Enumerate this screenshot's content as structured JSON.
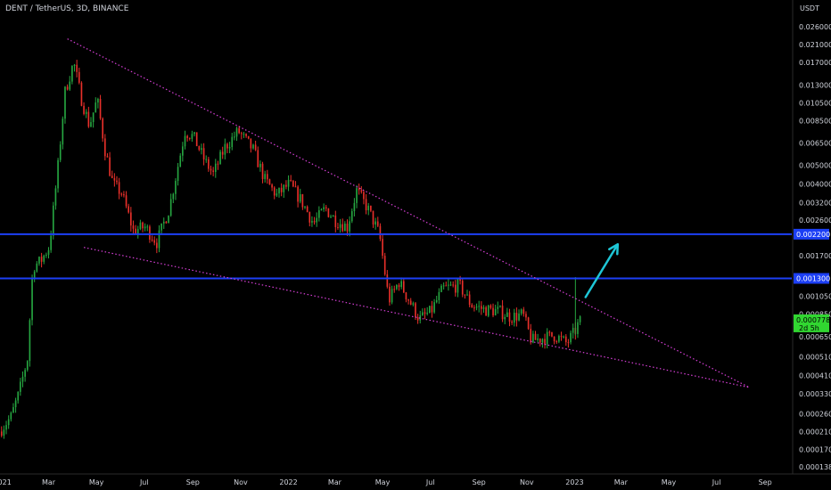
{
  "header": {
    "title": "DENT / TetherUS, 3D, BINANCE",
    "currency": "USDT"
  },
  "colors": {
    "background": "#000000",
    "up": "#26a641",
    "down": "#e8302a",
    "level_line": "#1c3ff5",
    "trendline": "#d63fd6",
    "arrow": "#1ec6d6",
    "axis_text": "#d1d4dc",
    "price_badge": "#31d631"
  },
  "chart_data": {
    "type": "candlestick",
    "title": "DENT / TetherUS, 3D, BINANCE",
    "y_scale": "log",
    "ylim": [
      0.000138,
      0.028
    ],
    "xlim": [
      "2020-12-29",
      "2023-10-05"
    ],
    "y_ticks": [
      "0.026000",
      "0.021000",
      "0.017000",
      "0.013000",
      "0.010500",
      "0.008500",
      "0.006500",
      "0.005000",
      "0.004000",
      "0.003200",
      "0.002600",
      "0.002200",
      "0.001700",
      "0.001300",
      "0.001050",
      "0.000850",
      "0.000778",
      "0.000650",
      "0.000510",
      "0.000410",
      "0.000330",
      "0.000260",
      "0.000210",
      "0.000170",
      "0.000138"
    ],
    "x_ticks": [
      {
        "label": "2021",
        "date": "2021-01-01"
      },
      {
        "label": "Mar",
        "date": "2021-03-01"
      },
      {
        "label": "May",
        "date": "2021-05-01"
      },
      {
        "label": "Jul",
        "date": "2021-07-01"
      },
      {
        "label": "Sep",
        "date": "2021-09-01"
      },
      {
        "label": "Nov",
        "date": "2021-11-01"
      },
      {
        "label": "2022",
        "date": "2022-01-01"
      },
      {
        "label": "Mar",
        "date": "2022-03-01"
      },
      {
        "label": "May",
        "date": "2022-05-01"
      },
      {
        "label": "Jul",
        "date": "2022-07-01"
      },
      {
        "label": "Sep",
        "date": "2022-09-01"
      },
      {
        "label": "Nov",
        "date": "2022-11-01"
      },
      {
        "label": "2023",
        "date": "2023-01-01"
      },
      {
        "label": "Mar",
        "date": "2023-03-01"
      },
      {
        "label": "May",
        "date": "2023-05-01"
      },
      {
        "label": "Jul",
        "date": "2023-07-01"
      },
      {
        "label": "Sep",
        "date": "2023-09-01"
      }
    ],
    "price_anchors": [
      {
        "date": "2020-12-31",
        "price": 0.00021
      },
      {
        "date": "2021-01-15",
        "price": 0.00025
      },
      {
        "date": "2021-01-25",
        "price": 0.00033
      },
      {
        "date": "2021-02-05",
        "price": 0.0005
      },
      {
        "date": "2021-02-12",
        "price": 0.0015
      },
      {
        "date": "2021-02-22",
        "price": 0.0016
      },
      {
        "date": "2021-03-05",
        "price": 0.0019
      },
      {
        "date": "2021-03-15",
        "price": 0.0045
      },
      {
        "date": "2021-03-25",
        "price": 0.012
      },
      {
        "date": "2021-04-05",
        "price": 0.017
      },
      {
        "date": "2021-04-15",
        "price": 0.011
      },
      {
        "date": "2021-04-25",
        "price": 0.008
      },
      {
        "date": "2021-05-05",
        "price": 0.011
      },
      {
        "date": "2021-05-15",
        "price": 0.006
      },
      {
        "date": "2021-05-25",
        "price": 0.004
      },
      {
        "date": "2021-06-05",
        "price": 0.0036
      },
      {
        "date": "2021-06-20",
        "price": 0.0023
      },
      {
        "date": "2021-07-05",
        "price": 0.0024
      },
      {
        "date": "2021-07-20",
        "price": 0.002
      },
      {
        "date": "2021-08-05",
        "price": 0.003
      },
      {
        "date": "2021-08-25",
        "price": 0.0075
      },
      {
        "date": "2021-09-05",
        "price": 0.007
      },
      {
        "date": "2021-09-20",
        "price": 0.0052
      },
      {
        "date": "2021-09-30",
        "price": 0.0045
      },
      {
        "date": "2021-10-15",
        "price": 0.0062
      },
      {
        "date": "2021-11-01",
        "price": 0.0075
      },
      {
        "date": "2021-11-20",
        "price": 0.006
      },
      {
        "date": "2021-12-05",
        "price": 0.0042
      },
      {
        "date": "2021-12-20",
        "price": 0.0035
      },
      {
        "date": "2022-01-05",
        "price": 0.004
      },
      {
        "date": "2022-01-20",
        "price": 0.0033
      },
      {
        "date": "2022-02-05",
        "price": 0.0025
      },
      {
        "date": "2022-02-20",
        "price": 0.003
      },
      {
        "date": "2022-03-05",
        "price": 0.0026
      },
      {
        "date": "2022-03-20",
        "price": 0.0024
      },
      {
        "date": "2022-04-01",
        "price": 0.0037
      },
      {
        "date": "2022-04-15",
        "price": 0.003
      },
      {
        "date": "2022-04-30",
        "price": 0.0022
      },
      {
        "date": "2022-05-12",
        "price": 0.001
      },
      {
        "date": "2022-05-25",
        "price": 0.00125
      },
      {
        "date": "2022-06-10",
        "price": 0.00095
      },
      {
        "date": "2022-06-20",
        "price": 0.0008
      },
      {
        "date": "2022-07-05",
        "price": 0.00088
      },
      {
        "date": "2022-07-20",
        "price": 0.00115
      },
      {
        "date": "2022-08-10",
        "price": 0.0012
      },
      {
        "date": "2022-08-25",
        "price": 0.00095
      },
      {
        "date": "2022-09-10",
        "price": 0.0009
      },
      {
        "date": "2022-09-30",
        "price": 0.00088
      },
      {
        "date": "2022-10-15",
        "price": 0.00082
      },
      {
        "date": "2022-10-30",
        "price": 0.00085
      },
      {
        "date": "2022-11-10",
        "price": 0.00062
      },
      {
        "date": "2022-11-25",
        "price": 0.00064
      },
      {
        "date": "2022-12-10",
        "price": 0.00066
      },
      {
        "date": "2022-12-25",
        "price": 0.0006
      },
      {
        "date": "2023-01-05",
        "price": 0.0007
      },
      {
        "date": "2023-01-10",
        "price": 0.000778
      }
    ],
    "horizontal_levels": [
      {
        "label": "0.002200",
        "price": 0.0022
      },
      {
        "label": "0.001300",
        "price": 0.0013
      }
    ],
    "trendlines": [
      {
        "from": {
          "date": "2021-03-25",
          "price": 0.0225
        },
        "to": {
          "date": "2023-08-12",
          "price": 0.000355
        }
      },
      {
        "from": {
          "date": "2021-04-15",
          "price": 0.00188
        },
        "to": {
          "date": "2023-08-12",
          "price": 0.000355
        }
      }
    ],
    "arrow": {
      "from": {
        "date": "2023-01-15",
        "price": 0.00104
      },
      "to": {
        "date": "2023-02-25",
        "price": 0.00195
      }
    },
    "last_price": {
      "label": "0.000778",
      "countdown": "2d 5h"
    },
    "grid": false,
    "legend": "none"
  }
}
